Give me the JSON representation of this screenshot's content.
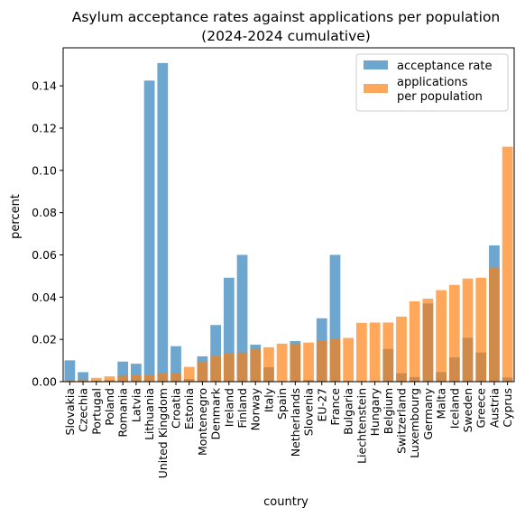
{
  "chart_data": {
    "type": "bar",
    "title_line1": "Asylum acceptance rates against applications per population",
    "title_line2": "(2024-2024 cumulative)",
    "xlabel": "country",
    "ylabel": "percent",
    "ylim": [
      0,
      0.158
    ],
    "yticks": [
      "0.00",
      "0.02",
      "0.04",
      "0.06",
      "0.08",
      "0.10",
      "0.12",
      "0.14"
    ],
    "ytick_values": [
      0,
      0.02,
      0.04,
      0.06,
      0.08,
      0.1,
      0.12,
      0.14
    ],
    "legend_position": "top-right",
    "categories": [
      "Slovakia",
      "Czechia",
      "Portugal",
      "Poland",
      "Romania",
      "Latvia",
      "Lithuania",
      "United Kingdom",
      "Croatia",
      "Estonia",
      "Montenegro",
      "Denmark",
      "Ireland",
      "Finland",
      "Norway",
      "Italy",
      "Spain",
      "Netherlands",
      "Slovenia",
      "EU-27",
      "France",
      "Bulgaria",
      "Liechtenstein",
      "Hungary",
      "Belgium",
      "Switzerland",
      "Luxembourg",
      "Germany",
      "Malta",
      "Iceland",
      "Sweden",
      "Greece",
      "Austria",
      "Cyprus"
    ],
    "series": [
      {
        "name": "acceptance rate",
        "color": "#1f77b4",
        "values": [
          0.0101,
          0.0045,
          0.0005,
          0.0008,
          0.0095,
          0.0085,
          0.1425,
          0.1508,
          0.0168,
          0.0012,
          0.012,
          0.0268,
          0.0492,
          0.06,
          0.0175,
          0.0068,
          0.0002,
          0.0192,
          0.0008,
          0.03,
          0.06,
          0.0003,
          0.0002,
          0.0002,
          0.0155,
          0.004,
          0.0022,
          0.037,
          0.0045,
          0.0115,
          0.0208,
          0.0138,
          0.0645,
          0.002
        ]
      },
      {
        "name": "applications\nper population",
        "color": "#ff7f0e",
        "values": [
          0.0004,
          0.001,
          0.0018,
          0.0025,
          0.0028,
          0.003,
          0.003,
          0.004,
          0.0042,
          0.007,
          0.0095,
          0.0122,
          0.0135,
          0.0138,
          0.0155,
          0.0163,
          0.018,
          0.018,
          0.0185,
          0.0195,
          0.0205,
          0.0207,
          0.0278,
          0.028,
          0.028,
          0.0308,
          0.038,
          0.0393,
          0.0433,
          0.0458,
          0.0488,
          0.0492,
          0.054,
          0.1112
        ]
      }
    ]
  }
}
